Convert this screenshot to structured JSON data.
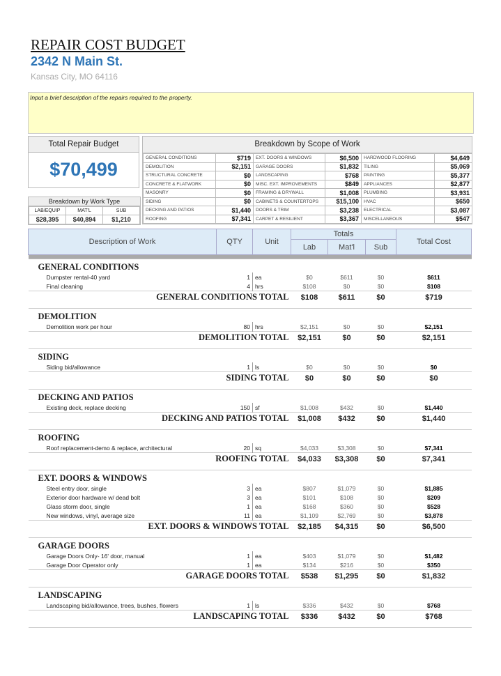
{
  "header": {
    "title": "REPAIR COST BUDGET",
    "address": "2342 N Main St.",
    "city": "Kansas City, MO 64116"
  },
  "description": "Input a brief description of the repairs required to the property.",
  "summary": {
    "label": "Total Repair Budget",
    "total": "$70,499",
    "worktype_label": "Breakdown by Work Type",
    "worktype_headers": [
      "LAB/EQUIP",
      "MAT'L",
      "SUB"
    ],
    "worktype_values": [
      "$28,395",
      "$40,894",
      "$1,210"
    ]
  },
  "scope": {
    "title": "Breakdown by Scope of Work",
    "rows": [
      [
        "GENERAL CONDITIONS",
        "$719",
        "EXT. DOORS & WINDOWS",
        "$6,500",
        "HARDWOOD FLOORING",
        "$4,649"
      ],
      [
        "DEMOLITION",
        "$2,151",
        "GARAGE DOORS",
        "$1,832",
        "TILING",
        "$5,069"
      ],
      [
        "STRUCTURAL CONCRETE",
        "$0",
        "LANDSCAPING",
        "$768",
        "PAINTING",
        "$5,377"
      ],
      [
        "CONCRETE & FLATWORK",
        "$0",
        "MISC. EXT. IMPROVEMENTS",
        "$849",
        "APPLIANCES",
        "$2,877"
      ],
      [
        "MASONRY",
        "$0",
        "FRAMING & DRYWALL",
        "$1,008",
        "PLUMBING",
        "$3,931"
      ],
      [
        "SIDING",
        "$0",
        "CABINETS & COUNTERTOPS",
        "$15,100",
        "HVAC",
        "$650"
      ],
      [
        "DECKING AND PATIOS",
        "$1,440",
        "DOORS & TRIM",
        "$3,238",
        "ELECTRICAL",
        "$3,087"
      ],
      [
        "ROOFING",
        "$7,341",
        "CARPET & RESILIENT",
        "$3,367",
        "MISCELLANEOUS",
        "$547"
      ]
    ]
  },
  "table": {
    "headers": {
      "description": "Description of Work",
      "qty": "QTY",
      "unit": "Unit",
      "totals": "Totals",
      "lab": "Lab",
      "mat": "Mat'l",
      "sub": "Sub",
      "total": "Total Cost"
    },
    "sections": [
      {
        "name": "GENERAL CONDITIONS",
        "items": [
          [
            "Dumpster rental-40 yard",
            "1",
            "ea",
            "$0",
            "$611",
            "$0",
            "$611"
          ],
          [
            "Final cleaning",
            "4",
            "hrs",
            "$108",
            "$0",
            "$0",
            "$108"
          ]
        ],
        "total_label": "GENERAL CONDITIONS TOTAL",
        "totals": [
          "$108",
          "$611",
          "$0",
          "$719"
        ]
      },
      {
        "name": "DEMOLITION",
        "items": [
          [
            "Demolition work per hour",
            "80",
            "hrs",
            "$2,151",
            "$0",
            "$0",
            "$2,151"
          ]
        ],
        "total_label": "DEMOLITION TOTAL",
        "totals": [
          "$2,151",
          "$0",
          "$0",
          "$2,151"
        ]
      },
      {
        "name": "SIDING",
        "items": [
          [
            "Siding bid/allowance",
            "1",
            "ls",
            "$0",
            "$0",
            "$0",
            "$0"
          ]
        ],
        "total_label": "SIDING TOTAL",
        "totals": [
          "$0",
          "$0",
          "$0",
          "$0"
        ]
      },
      {
        "name": "DECKING AND PATIOS",
        "items": [
          [
            "Existing deck, replace decking",
            "150",
            "sf",
            "$1,008",
            "$432",
            "$0",
            "$1,440"
          ]
        ],
        "total_label": "DECKING AND PATIOS TOTAL",
        "totals": [
          "$1,008",
          "$432",
          "$0",
          "$1,440"
        ]
      },
      {
        "name": "ROOFING",
        "items": [
          [
            "Roof replacement-demo & replace, architectural",
            "20",
            "sq",
            "$4,033",
            "$3,308",
            "$0",
            "$7,341"
          ]
        ],
        "total_label": "ROOFING TOTAL",
        "totals": [
          "$4,033",
          "$3,308",
          "$0",
          "$7,341"
        ]
      },
      {
        "name": "EXT. DOORS & WINDOWS",
        "items": [
          [
            "Steel entry door,  single",
            "3",
            "ea",
            "$807",
            "$1,079",
            "$0",
            "$1,885"
          ],
          [
            "Exterior door hardware w/ dead bolt",
            "3",
            "ea",
            "$101",
            "$108",
            "$0",
            "$209"
          ],
          [
            "Glass storm door, single",
            "1",
            "ea",
            "$168",
            "$360",
            "$0",
            "$528"
          ],
          [
            "New windows, vinyl, average size",
            "11",
            "ea",
            "$1,109",
            "$2,769",
            "$0",
            "$3,878"
          ]
        ],
        "total_label": "EXT. DOORS & WINDOWS TOTAL",
        "totals": [
          "$2,185",
          "$4,315",
          "$0",
          "$6,500"
        ]
      },
      {
        "name": "GARAGE DOORS",
        "items": [
          [
            "Garage Doors Only- 16' door, manual",
            "1",
            "ea",
            "$403",
            "$1,079",
            "$0",
            "$1,482"
          ],
          [
            "Garage Door Operator only",
            "1",
            "ea",
            "$134",
            "$216",
            "$0",
            "$350"
          ]
        ],
        "total_label": "GARAGE DOORS TOTAL",
        "totals": [
          "$538",
          "$1,295",
          "$0",
          "$1,832"
        ]
      },
      {
        "name": "LANDSCAPING",
        "items": [
          [
            "Landscaping bid/allowance, trees, bushes, flowers",
            "1",
            "ls",
            "$336",
            "$432",
            "$0",
            "$768"
          ]
        ],
        "total_label": "LANDSCAPING TOTAL",
        "totals": [
          "$336",
          "$432",
          "$0",
          "$768"
        ]
      }
    ]
  }
}
